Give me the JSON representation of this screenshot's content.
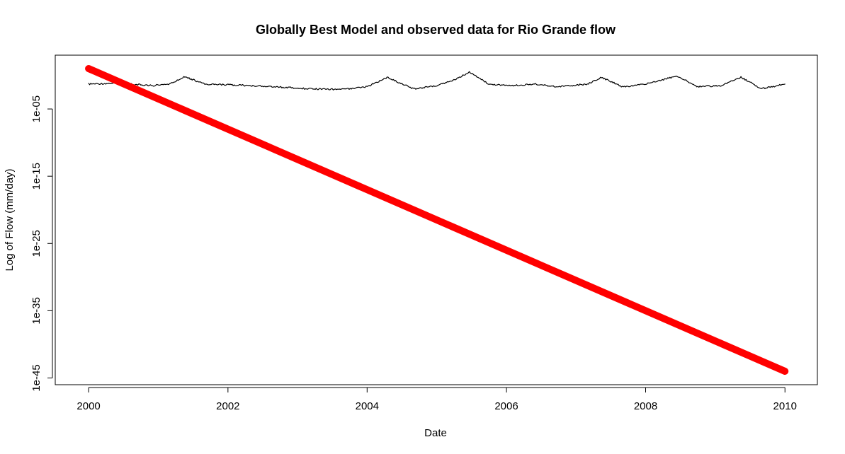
{
  "chart_data": {
    "type": "line",
    "title": "Globally Best Model and observed data for Rio Grande flow",
    "xlabel": "Date",
    "ylabel": "Log of Flow (mm/day)",
    "x_scale": "date",
    "y_scale": "log",
    "xlim": [
      "1999-07-10",
      "2010-06-20"
    ],
    "ylim": [
      1e-46,
      1000.0
    ],
    "x_ticks": [
      "2000",
      "2002",
      "2004",
      "2006",
      "2008",
      "2010"
    ],
    "y_ticks": [
      "1e-05",
      "1e-15",
      "1e-25",
      "1e-35",
      "1e-45"
    ],
    "grid": false,
    "legend": "none",
    "series": [
      {
        "color": "#000000",
        "style": "thin line",
        "x": [
          "2000-01-01",
          "2000-06-01",
          "2000-12-01",
          "2001-03-01",
          "2001-05-20",
          "2001-09-01",
          "2002-01-01",
          "2002-05-01",
          "2002-09-01",
          "2003-03-01",
          "2003-09-01",
          "2004-01-01",
          "2004-04-15",
          "2004-09-01",
          "2005-01-01",
          "2005-04-01",
          "2005-06-20",
          "2005-10-01",
          "2006-02-01",
          "2006-06-01",
          "2006-10-01",
          "2007-03-01",
          "2007-05-15",
          "2007-09-01",
          "2008-01-01",
          "2008-06-15",
          "2008-10-01",
          "2009-02-01",
          "2009-05-15",
          "2009-09-01",
          "2010-01-01"
        ],
        "y": [
          0.05,
          0.07,
          0.03,
          0.05,
          0.6,
          0.05,
          0.04,
          0.03,
          0.02,
          0.01,
          0.008,
          0.02,
          0.5,
          0.01,
          0.03,
          0.2,
          3.0,
          0.05,
          0.03,
          0.05,
          0.02,
          0.05,
          0.5,
          0.02,
          0.05,
          0.8,
          0.02,
          0.03,
          0.5,
          0.01,
          0.05
        ]
      },
      {
        "color": "#ff0000",
        "style": "thick line",
        "x": [
          "2000-01-01",
          "2010-01-01"
        ],
        "y": [
          10,
          1e-44
        ]
      }
    ]
  }
}
